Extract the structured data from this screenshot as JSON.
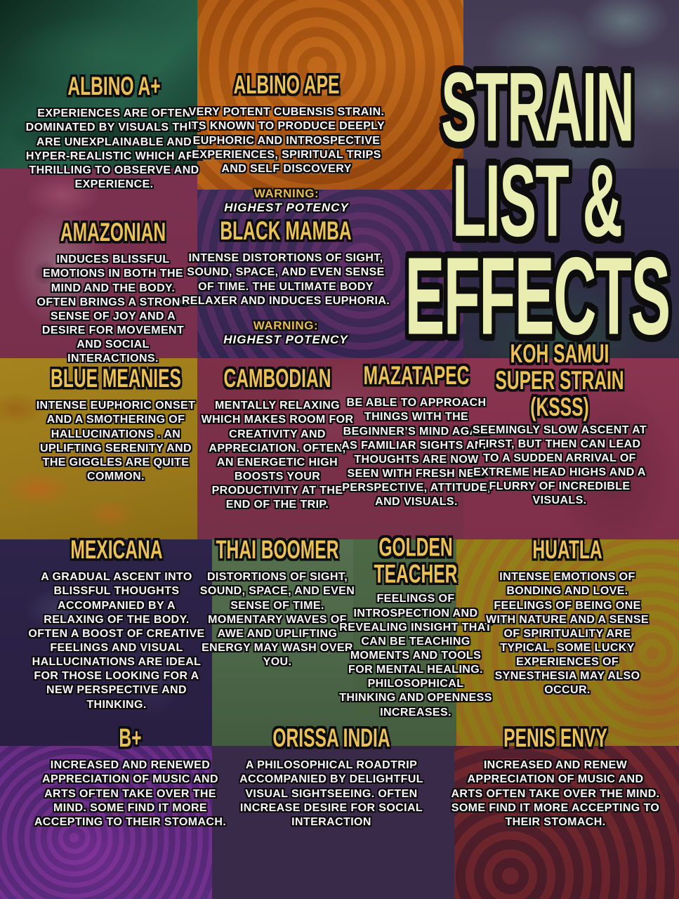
{
  "title": {
    "lines": [
      "STRAIN",
      "LIST &",
      "EFFECTS"
    ]
  },
  "warning": {
    "label": "WARNING:",
    "text": "HIGHEST POTENCY"
  },
  "colors": {
    "title_text": "#e9edb0",
    "strain_heading": "#ebc156",
    "body_text": "#f7f5f7",
    "warning_label": "#e8bc4e",
    "outline": "#0d0d0d"
  },
  "strains": [
    {
      "name": "ALBINO A+",
      "description": "EXPERIENCES ARE OFTEN DOMINATED BY VISUALS THAT ARE UNEXPLAINABLE AND HYPER-REALISTIC WHICH ARE THRILLING TO OBSERVE AND EXPERIENCE.",
      "has_warning": false
    },
    {
      "name": "ALBINO APE",
      "description": "VERY POTENT CUBENSIS STRAIN. ITS KNOWN TO PRODUCE DEEPLY EUPHORIC AND INTROSPECTIVE EXPERIENCES, SPIRITUAL TRIPS AND SELF DISCOVERY",
      "has_warning": true
    },
    {
      "name": "AMAZONIAN",
      "description": "INDUCES BLISSFUL EMOTIONS IN BOTH THE MIND AND THE BODY. OFTEN BRINGS A STRONG SENSE OF JOY AND A DESIRE FOR MOVEMENT AND SOCIAL INTERACTIONS.",
      "has_warning": false
    },
    {
      "name": "BLACK MAMBA",
      "description": "INTENSE DISTORTIONS OF SIGHT, SOUND, SPACE, AND EVEN SENSE OF TIME. THE ULTIMATE BODY RELAXER AND INDUCES EUPHORIA.",
      "has_warning": true
    },
    {
      "name": "BLUE MEANIES",
      "description": "INTENSE EUPHORIC ONSET AND A SMOTHERING OF HALLUCINATIONS . AN UPLIFTING SERENITY AND THE GIGGLES ARE QUITE COMMON.",
      "has_warning": false
    },
    {
      "name": "CAMBODIAN",
      "description": "MENTALLY RELAXING WHICH MAKES ROOM FOR CREATIVITY AND APPRECIATION. OFTEN, AN ENERGETIC HIGH BOOSTS YOUR PRODUCTIVITY AT THE END OF THE TRIP.",
      "has_warning": false
    },
    {
      "name": "MAZATAPEC",
      "description": "BE ABLE TO APPROACH THINGS WITH THE BEGINNER’S MIND AGAIN AS FAMILIAR SIGHTS AND THOUGHTS ARE NOW SEEN WITH FRESH NEW PERSPECTIVE, ATTITUDE, AND VISUALS.",
      "has_warning": false
    },
    {
      "name": "KOH SAMUI SUPER STRAIN (KSSS)",
      "description": "SEEMINGLY SLOW ASCENT AT FIRST, BUT THEN CAN LEAD TO A SUDDEN ARRIVAL OF EXTREME HEAD HIGHS AND A FLURRY OF INCREDIBLE VISUALS.",
      "has_warning": false
    },
    {
      "name": "MEXICANA",
      "description": "A GRADUAL ASCENT INTO BLISSFUL THOUGHTS ACCOMPANIED BY A RELAXING OF THE BODY. OFTEN A BOOST OF CREATIVE FEELINGS AND VISUAL HALLUCINATIONS ARE IDEAL FOR THOSE LOOKING FOR A NEW PERSPECTIVE AND THINKING.",
      "has_warning": false
    },
    {
      "name": "THAI BOOMER",
      "description": "DISTORTIONS OF SIGHT, SOUND, SPACE, AND EVEN SENSE OF TIME. MOMENTARY WAVES OF AWE AND UPLIFTING ENERGY MAY WASH OVER YOU.",
      "has_warning": false
    },
    {
      "name": "GOLDEN TEACHER",
      "description": "FEELINGS OF INTROSPECTION AND REVEALING INSIGHT THAT CAN BE TEACHING MOMENTS AND TOOLS FOR MENTAL HEALING. PHILOSOPHICAL THINKING AND OPENNESS INCREASES.",
      "has_warning": false
    },
    {
      "name": "HUATLA",
      "description": "INTENSE EMOTIONS OF BONDING AND LOVE. FEELINGS OF BEING ONE WITH NATURE AND A SENSE OF SPIRITUALITY ARE TYPICAL. SOME LUCKY EXPERIENCES OF SYNESTHESIA MAY ALSO OCCUR.",
      "has_warning": false
    },
    {
      "name": "B+",
      "description": "INCREASED AND RENEWED APPRECIATION OF MUSIC AND ARTS OFTEN TAKE OVER THE MIND. SOME FIND IT MORE ACCEPTING TO THEIR STOMACH.",
      "has_warning": false
    },
    {
      "name": "ORISSA INDIA",
      "description": "A PHILOSOPHICAL ROADTRIP ACCOMPANIED BY DELIGHTFUL VISUAL SIGHTSEEING. OFTEN INCREASE DESIRE FOR SOCIAL INTERACTION",
      "has_warning": false
    },
    {
      "name": "PENIS ENVY",
      "description": "INCREASED AND RENEW APPRECIATION OF MUSIC AND ARTS OFTEN TAKE OVER THE MIND. SOME FIND IT MORE ACCEPTING TO THEIR STOMACH.",
      "has_warning": false
    }
  ]
}
